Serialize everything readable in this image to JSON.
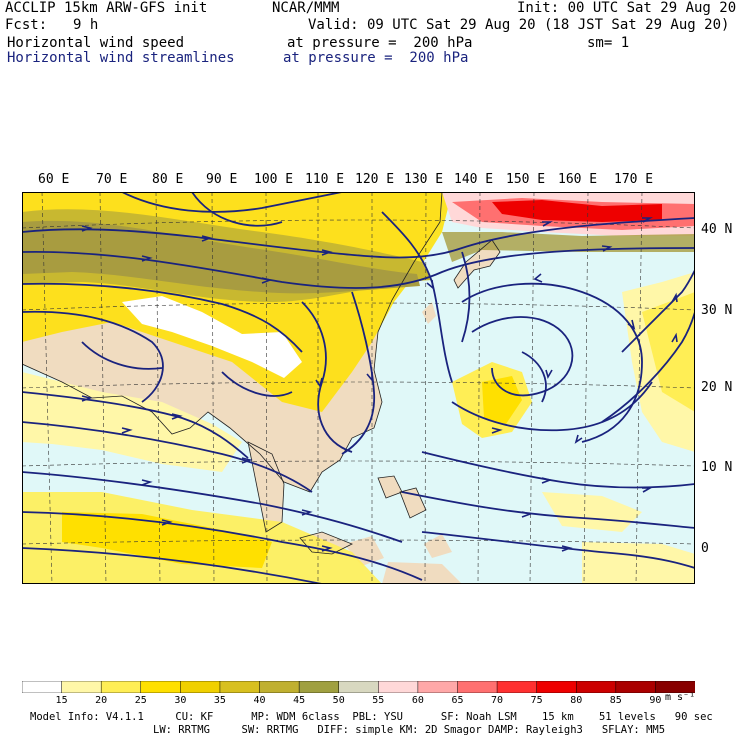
{
  "header": {
    "model": "ACCLIP 15km ARW-GFS init",
    "center": "NCAR/MMM",
    "init": "Init: 00 UTC Sat 29 Aug 20",
    "fcst_label": "Fcst:",
    "fcst_value": "9 h",
    "valid": "Valid: 09 UTC Sat 29 Aug 20 (18 JST Sat 29 Aug 20)",
    "field1": "Horizontal wind speed",
    "field1_level": "at pressure =  200 hPa",
    "smooth": "sm= 1",
    "field2": "Horizontal wind streamlines",
    "field2_level": "at pressure =  200 hPa"
  },
  "longitudes": [
    "60 E",
    "70 E",
    "80 E",
    "90 E",
    "100 E",
    "110 E",
    "120 E",
    "130 E",
    "140 E",
    "150 E",
    "160 E",
    "170 E"
  ],
  "latitudes": [
    "40 N",
    "30 N",
    "20 N",
    "10 N",
    "0"
  ],
  "colorbar": {
    "labels": [
      "15",
      "20",
      "25",
      "30",
      "35",
      "40",
      "45",
      "50",
      "55",
      "60",
      "65",
      "70",
      "75",
      "80",
      "85",
      "90"
    ],
    "unit": "m s⁻¹",
    "colors": [
      "#ffffff",
      "#fff7a8",
      "#ffee55",
      "#ffe000",
      "#f0d000",
      "#d8c020",
      "#c0b030",
      "#a0a040",
      "#d8d8c0",
      "#ffd8d8",
      "#ffa8a8",
      "#ff7070",
      "#ff3030",
      "#ee0000",
      "#cc0000",
      "#aa0000",
      "#880000"
    ]
  },
  "footer": {
    "line1": "Model Info: V4.1.1     CU: KF      MP: WDM 6class  PBL: YSU      SF: Noah LSM    15 km    51 levels   90 sec",
    "line2": "LW: RRTMG     SW: RRTMG   DIFF: simple KM: 2D Smagor DAMP: Rayleigh3   SFLAY: MM5"
  },
  "colors": {
    "streamline": "#1a237e",
    "ocean": "#e0f8f8",
    "land": "#f0dcc0"
  }
}
